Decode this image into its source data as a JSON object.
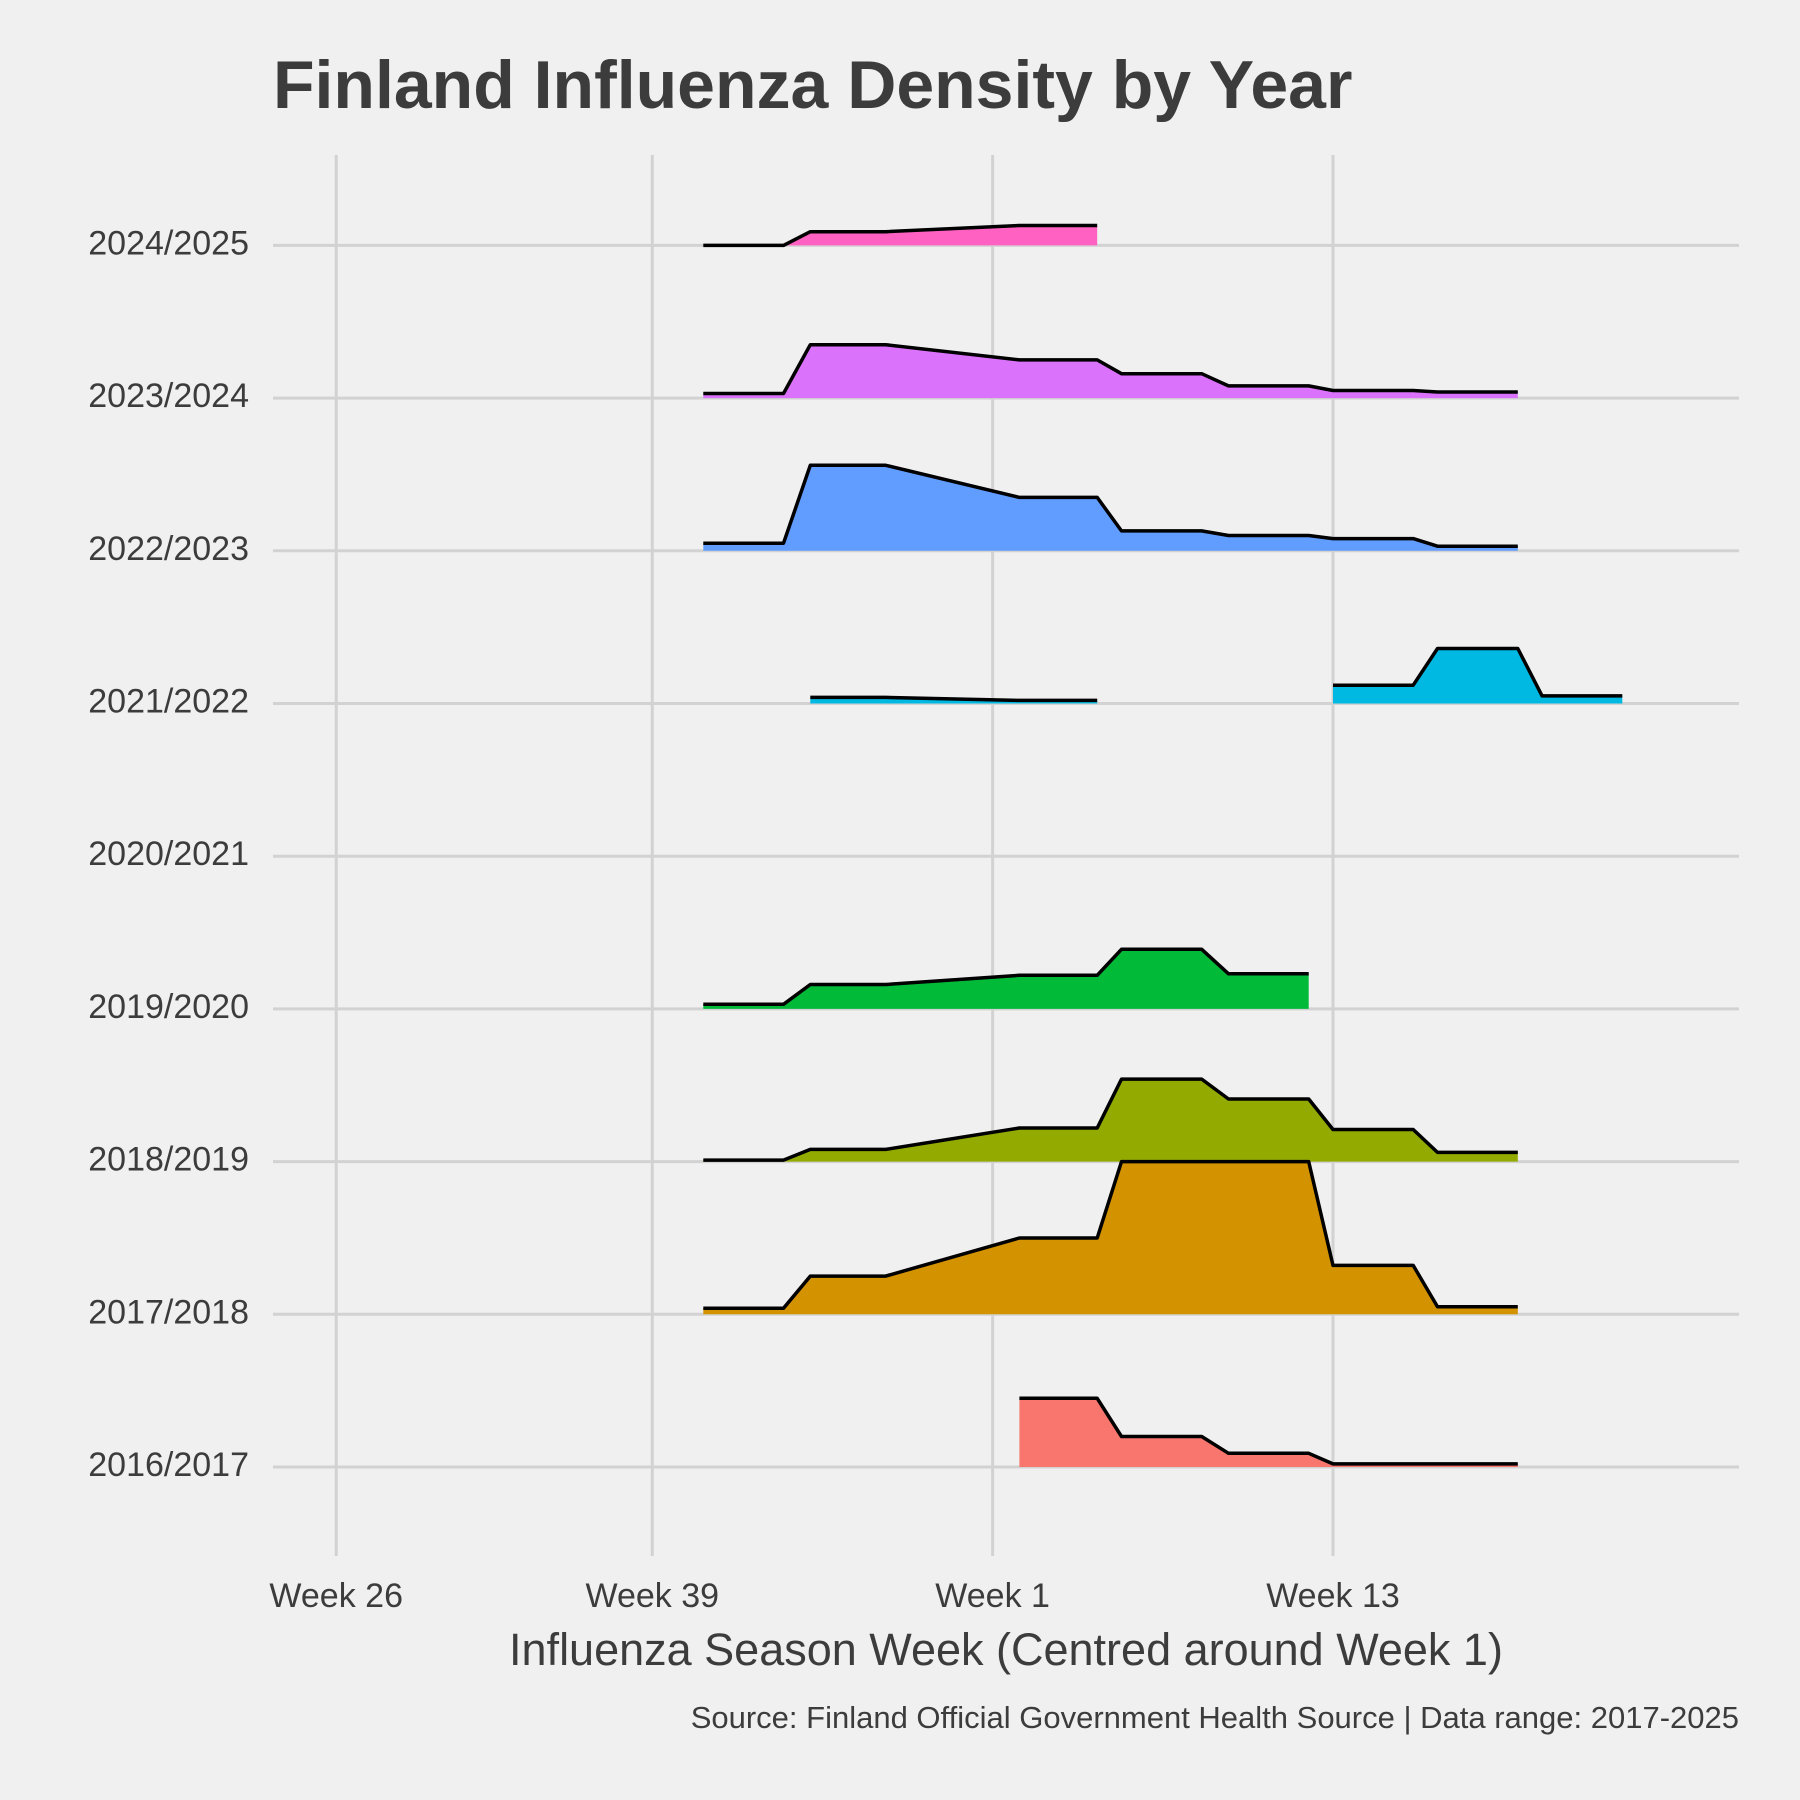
{
  "chart_data": {
    "type": "ridgeline",
    "title": "Finland Influenza Density by Year",
    "x_label": "Influenza Season Week (Centred around Week 1)",
    "caption": "Source: Finland Official Government Health Source | Data range: 2017-2025",
    "x": [
      41.1,
      44.4,
      45.5,
      48.6,
      54.1,
      57.3,
      58.3,
      61.6,
      62.7,
      66,
      67,
      70.3,
      71.3,
      74.6,
      75.6,
      78.9
    ],
    "xlim": [
      23.4,
      83.7
    ],
    "xticks": [
      {
        "value": 26,
        "label": "Week 26"
      },
      {
        "value": 39,
        "label": "Week 39"
      },
      {
        "value": 53,
        "label": "Week 1"
      },
      {
        "value": 67,
        "label": "Week 13"
      }
    ],
    "grid": true,
    "line_color": "#000000",
    "series": [
      {
        "name": "2016/2017",
        "color": "#F8766D",
        "values": [
          null,
          null,
          null,
          null,
          0.45,
          0.45,
          0.2,
          0.2,
          0.09,
          0.09,
          0.02,
          0.02,
          0.02,
          0.02,
          null,
          null
        ]
      },
      {
        "name": "2017/2018",
        "color": "#D39200",
        "values": [
          0.04,
          0.04,
          0.25,
          0.25,
          0.5,
          0.5,
          1.0,
          1.0,
          1.0,
          1.0,
          0.32,
          0.32,
          0.05,
          0.05,
          null,
          null
        ]
      },
      {
        "name": "2018/2019",
        "color": "#93AA00",
        "values": [
          0.01,
          0.01,
          0.08,
          0.08,
          0.22,
          0.22,
          0.54,
          0.54,
          0.41,
          0.41,
          0.21,
          0.21,
          0.06,
          0.06,
          null,
          null
        ]
      },
      {
        "name": "2019/2020",
        "color": "#00BA38",
        "values": [
          0.03,
          0.03,
          0.16,
          0.16,
          0.22,
          0.22,
          0.39,
          0.39,
          0.23,
          0.23,
          null,
          null,
          null,
          null,
          null,
          null
        ]
      },
      {
        "name": "2020/2021",
        "color": "#00C19F",
        "values": [
          null,
          null,
          null,
          null,
          null,
          null,
          null,
          null,
          null,
          null,
          null,
          null,
          null,
          null,
          null,
          null
        ]
      },
      {
        "name": "2021/2022",
        "color": "#00B9E3",
        "values": [
          null,
          null,
          0.04,
          0.04,
          0.02,
          0.02,
          null,
          null,
          null,
          null,
          0.12,
          0.12,
          0.36,
          0.36,
          0.05,
          0.05
        ]
      },
      {
        "name": "2022/2023",
        "color": "#619CFF",
        "values": [
          0.05,
          0.05,
          0.56,
          0.56,
          0.35,
          0.35,
          0.13,
          0.13,
          0.1,
          0.1,
          0.08,
          0.08,
          0.03,
          0.03,
          null,
          null
        ]
      },
      {
        "name": "2023/2024",
        "color": "#DB72FB",
        "values": [
          0.03,
          0.03,
          0.35,
          0.35,
          0.25,
          0.25,
          0.16,
          0.16,
          0.08,
          0.08,
          0.05,
          0.05,
          0.04,
          0.04,
          null,
          null
        ]
      },
      {
        "name": "2024/2025",
        "color": "#FF61C3",
        "values": [
          0,
          0,
          0.09,
          0.09,
          0.13,
          0.13,
          null,
          null,
          null,
          null,
          null,
          null,
          null,
          null,
          null,
          null
        ]
      }
    ]
  }
}
